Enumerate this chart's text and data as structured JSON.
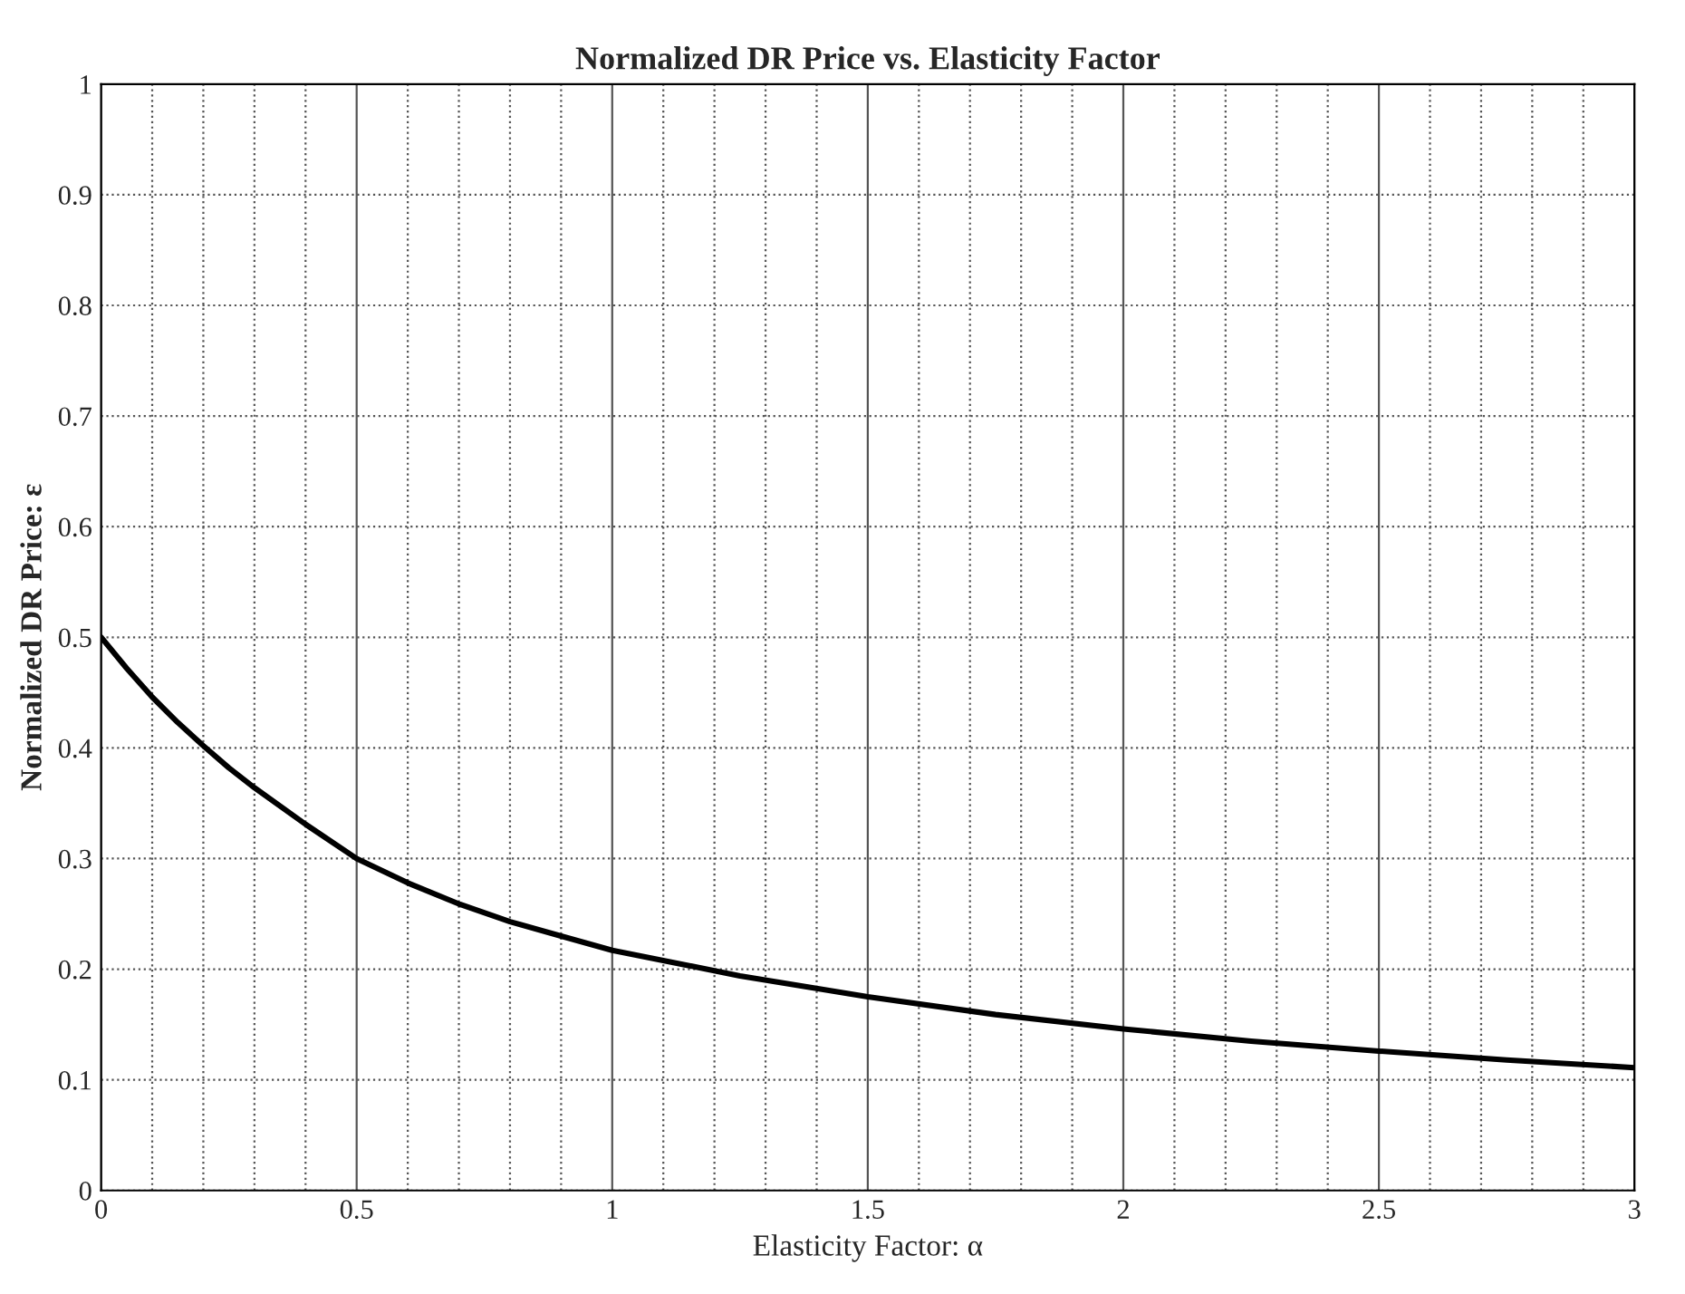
{
  "chart_data": {
    "type": "line",
    "title": "Normalized DR Price vs. Elasticity Factor",
    "xlabel": "Elasticity Factor: α",
    "ylabel": "Normalized DR Price: ε",
    "series": [
      {
        "color": "#000000",
        "x": [
          0,
          0.05,
          0.1,
          0.15,
          0.2,
          0.25,
          0.3,
          0.4,
          0.5,
          0.6,
          0.7,
          0.8,
          0.9,
          1,
          1.25,
          1.5,
          1.75,
          2,
          2.25,
          2.5,
          2.75,
          3
        ],
        "values": [
          0.5,
          0.472,
          0.446,
          0.423,
          0.402,
          0.382,
          0.364,
          0.331,
          0.3,
          0.278,
          0.259,
          0.243,
          0.23,
          0.217,
          0.194,
          0.175,
          0.159,
          0.146,
          0.135,
          0.126,
          0.118,
          0.111
        ]
      }
    ],
    "xlim": [
      0,
      3
    ],
    "ylim": [
      0,
      1
    ],
    "xticks": [
      0,
      0.5,
      1,
      1.5,
      2,
      2.5,
      3
    ],
    "yticks": [
      0,
      0.1,
      0.2,
      0.3,
      0.4,
      0.5,
      0.6,
      0.7,
      0.8,
      0.9,
      1
    ],
    "grid": true,
    "legend": false,
    "marker": "none",
    "line_style": "solid"
  }
}
